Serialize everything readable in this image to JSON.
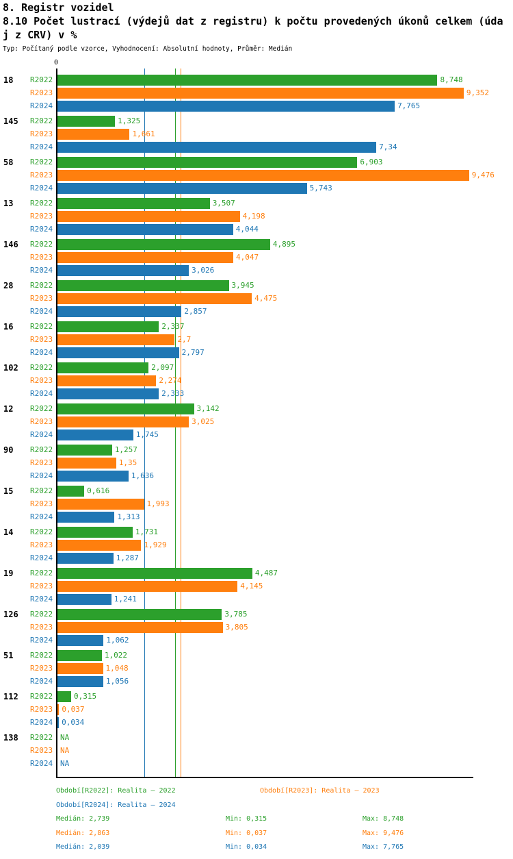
{
  "header": {
    "title": "8. Registr vozidel",
    "subtitle_lines": [
      "8.10 Počet lustrací (výdejů dat z registru) k počtu provedených úkonů celkem (úda",
      "j z CRV) v %"
    ],
    "meta": "Typ: Počítaný podle vzorce, Vyhodnocení: Absolutní hodnoty, Průměr: Medián"
  },
  "chart_data": {
    "type": "bar",
    "orientation": "horizontal",
    "section": "8. Registr vozidel",
    "title": "8.10 Počet lustrací (výdejů dat z registru) k počtu provedených úkonů celkem (údaj z CRV) v %",
    "value_unit": "%",
    "xlim": [
      0,
      9.6
    ],
    "x_axis_zero_label": "0",
    "grid": false,
    "series": [
      {
        "name": "R2022",
        "color": "#2ca02c",
        "median": 2.739,
        "min": 0.315,
        "max": 8.748
      },
      {
        "name": "R2023",
        "color": "#ff7f0e",
        "median": 2.863,
        "min": 0.037,
        "max": 9.476
      },
      {
        "name": "R2024",
        "color": "#1f77b4",
        "median": 2.039,
        "min": 0.034,
        "max": 7.765
      }
    ],
    "groups": [
      {
        "category": "18",
        "values": [
          8.748,
          9.352,
          7.765
        ],
        "labels": [
          "8,748",
          "9,352",
          "7,765"
        ]
      },
      {
        "category": "145",
        "values": [
          1.325,
          1.661,
          7.34
        ],
        "labels": [
          "1,325",
          "1,661",
          "7,34"
        ]
      },
      {
        "category": "58",
        "values": [
          6.903,
          9.476,
          5.743
        ],
        "labels": [
          "6,903",
          "9,476",
          "5,743"
        ]
      },
      {
        "category": "13",
        "values": [
          3.507,
          4.198,
          4.044
        ],
        "labels": [
          "3,507",
          "4,198",
          "4,044"
        ]
      },
      {
        "category": "146",
        "values": [
          4.895,
          4.047,
          3.026
        ],
        "labels": [
          "4,895",
          "4,047",
          "3,026"
        ]
      },
      {
        "category": "28",
        "values": [
          3.945,
          4.475,
          2.857
        ],
        "labels": [
          "3,945",
          "4,475",
          "2,857"
        ]
      },
      {
        "category": "16",
        "values": [
          2.337,
          2.7,
          2.797
        ],
        "labels": [
          "2,337",
          "2,7",
          "2,797"
        ]
      },
      {
        "category": "102",
        "values": [
          2.097,
          2.274,
          2.333
        ],
        "labels": [
          "2,097",
          "2,274",
          "2,333"
        ]
      },
      {
        "category": "12",
        "values": [
          3.142,
          3.025,
          1.745
        ],
        "labels": [
          "3,142",
          "3,025",
          "1,745"
        ]
      },
      {
        "category": "90",
        "values": [
          1.257,
          1.35,
          1.636
        ],
        "labels": [
          "1,257",
          "1,35",
          "1,636"
        ]
      },
      {
        "category": "15",
        "values": [
          0.616,
          1.993,
          1.313
        ],
        "labels": [
          "0,616",
          "1,993",
          "1,313"
        ]
      },
      {
        "category": "14",
        "values": [
          1.731,
          1.929,
          1.287
        ],
        "labels": [
          "1,731",
          "1,929",
          "1,287"
        ]
      },
      {
        "category": "19",
        "values": [
          4.487,
          4.145,
          1.241
        ],
        "labels": [
          "4,487",
          "4,145",
          "1,241"
        ]
      },
      {
        "category": "126",
        "values": [
          3.785,
          3.805,
          1.062
        ],
        "labels": [
          "3,785",
          "3,805",
          "1,062"
        ]
      },
      {
        "category": "51",
        "values": [
          1.022,
          1.048,
          1.056
        ],
        "labels": [
          "1,022",
          "1,048",
          "1,056"
        ]
      },
      {
        "category": "112",
        "values": [
          0.315,
          0.037,
          0.034
        ],
        "labels": [
          "0,315",
          "0,037",
          "0,034"
        ]
      },
      {
        "category": "138",
        "values": [
          null,
          null,
          null
        ],
        "labels": [
          "NA",
          "NA",
          "NA"
        ]
      }
    ]
  },
  "footer": {
    "legend": [
      {
        "text": "Období[R2022]: Realita – 2022",
        "color": "#2ca02c"
      },
      {
        "text": "Období[R2023]: Realita – 2023",
        "color": "#ff7f0e"
      },
      {
        "text": "Období[R2024]: Realita – 2024",
        "color": "#1f77b4"
      }
    ],
    "stats": [
      {
        "median": "Medián: 2,739",
        "min": "Min: 0,315",
        "max": "Max: 8,748",
        "color": "#2ca02c"
      },
      {
        "median": "Medián: 2,863",
        "min": "Min: 0,037",
        "max": "Max: 9,476",
        "color": "#ff7f0e"
      },
      {
        "median": "Medián: 2,039",
        "min": "Min: 0,034",
        "max": "Max: 7,765",
        "color": "#1f77b4"
      }
    ]
  }
}
